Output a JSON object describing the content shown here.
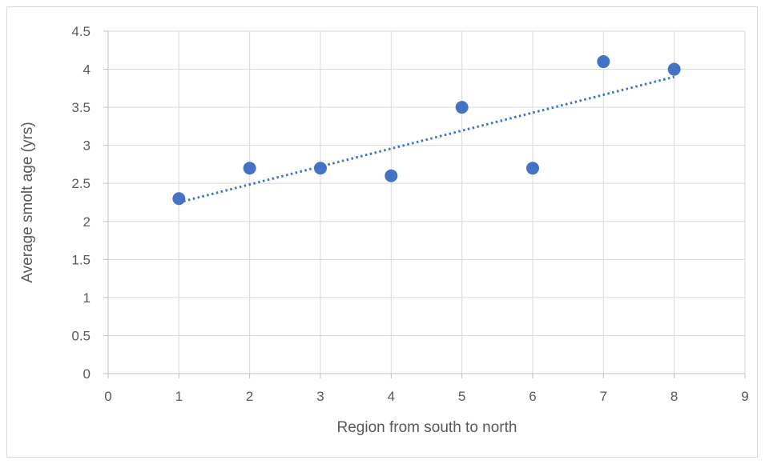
{
  "chart_data": {
    "type": "scatter",
    "title": "",
    "xlabel": "Region from south to north",
    "ylabel": "Average smolt age (yrs)",
    "xlim": [
      0,
      9
    ],
    "ylim": [
      0,
      4.5
    ],
    "x_ticks": [
      "0",
      "1",
      "2",
      "3",
      "4",
      "5",
      "6",
      "7",
      "8",
      "9"
    ],
    "y_ticks": [
      "0",
      "0.5",
      "1",
      "1.5",
      "2",
      "2.5",
      "3",
      "3.5",
      "4",
      "4.5"
    ],
    "grid": true,
    "legend": "none",
    "series": [
      {
        "x": [
          1,
          2,
          3,
          4,
          5,
          6,
          7,
          8
        ],
        "y": [
          2.3,
          2.7,
          2.7,
          2.6,
          3.5,
          2.7,
          4.1,
          4.0
        ],
        "color": "#4472c4",
        "trendline": {
          "type": "linear",
          "style": "dotted",
          "color": "#4472c4"
        }
      }
    ]
  }
}
